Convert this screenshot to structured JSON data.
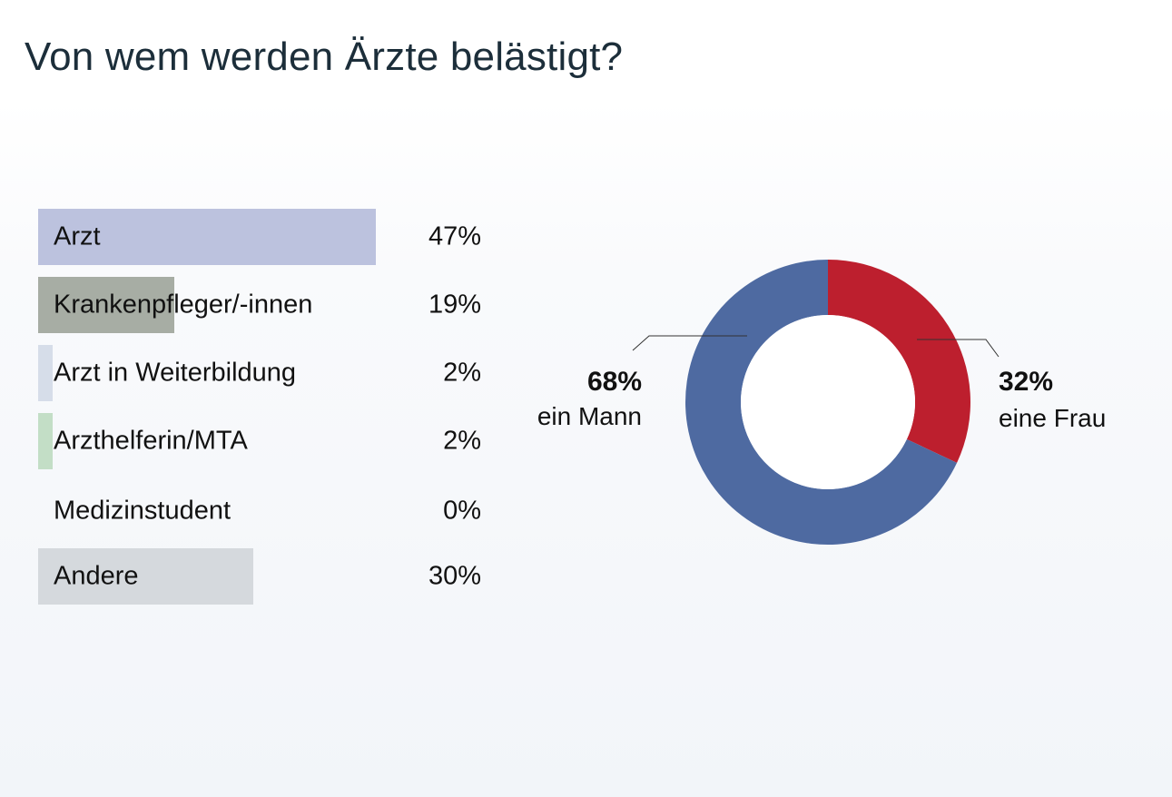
{
  "title": "Von wem werden Ärzte belästigt?",
  "chart_data": [
    {
      "type": "bar",
      "orientation": "horizontal",
      "categories": [
        "Arzt",
        "Krankenpfleger/-innen",
        "Arzt in Weiterbildung",
        "Arzthelferin/MTA",
        "Medizinstudent",
        "Andere"
      ],
      "values": [
        47,
        19,
        2,
        2,
        0,
        30
      ],
      "value_labels": [
        "47%",
        "19%",
        "2%",
        "2%",
        "0%",
        "30%"
      ],
      "colors": [
        "#bcc2de",
        "#a7ada4",
        "#d6dde9",
        "#c3dec6",
        "#ffffff",
        "#d5d9dd"
      ],
      "unit": "%"
    },
    {
      "type": "pie",
      "style": "donut",
      "slices": [
        {
          "value_label": "32%",
          "label": "eine Frau",
          "value": 32,
          "color": "#bd1f2e"
        },
        {
          "value_label": "68%",
          "label": "ein Mann",
          "value": 68,
          "color": "#4e6aa1"
        }
      ]
    }
  ]
}
